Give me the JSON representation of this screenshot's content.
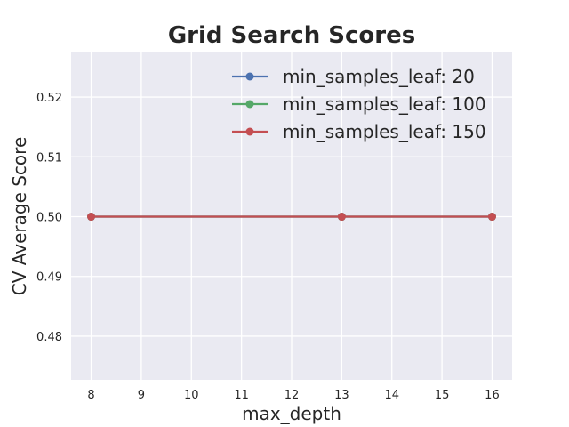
{
  "chart_data": {
    "type": "line",
    "title": "Grid Search Scores",
    "xlabel": "max_depth",
    "ylabel": "CV Average Score",
    "x_ticks": [
      8,
      9,
      10,
      11,
      12,
      13,
      14,
      15,
      16
    ],
    "y_ticks": [
      "0.48",
      "0.49",
      "0.50",
      "0.51",
      "0.52"
    ],
    "y_tick_values": [
      0.48,
      0.49,
      0.5,
      0.51,
      0.52
    ],
    "xlim": [
      7.6,
      16.4
    ],
    "ylim": [
      0.4727,
      0.5276
    ],
    "grid": true,
    "legend_position": "top-right",
    "background_color": "#EAEAF2",
    "series": [
      {
        "name": "min_samples_leaf: 20",
        "color": "#4C72B0",
        "x": [
          8,
          13,
          16
        ],
        "y": [
          0.5,
          0.5,
          0.5
        ]
      },
      {
        "name": "min_samples_leaf: 100",
        "color": "#55A868",
        "x": [
          8,
          13,
          16
        ],
        "y": [
          0.5,
          0.5,
          0.5
        ]
      },
      {
        "name": "min_samples_leaf: 150",
        "color": "#C44E52",
        "x": [
          8,
          13,
          16
        ],
        "y": [
          0.5,
          0.5,
          0.5
        ]
      }
    ]
  }
}
